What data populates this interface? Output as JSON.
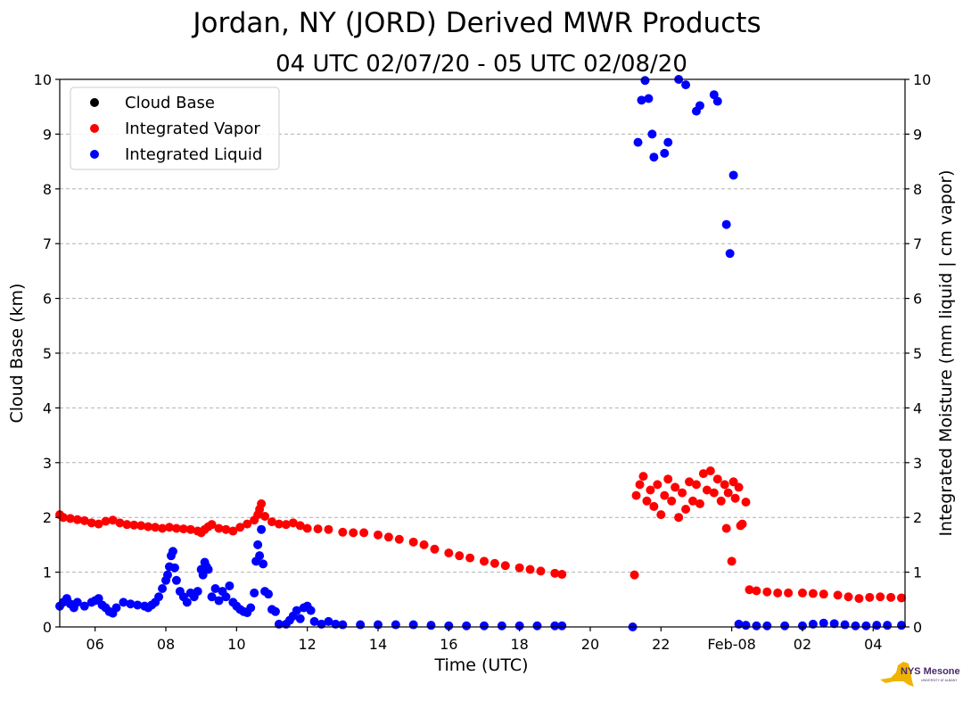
{
  "chart_data": {
    "type": "scatter",
    "title": "Jordan, NY (JORD) Derived MWR Products",
    "subtitle": "04 UTC 02/07/20 - 05 UTC 02/08/20",
    "xlabel": "Time (UTC)",
    "ylabel_left": "Cloud Base (km)",
    "ylabel_right": "Integrated Moisture (mm liquid | cm vapor)",
    "xlim_hours": [
      5.0,
      28.9
    ],
    "ylim": [
      0,
      10
    ],
    "grid": true,
    "x_ticks": [
      {
        "hour": 6,
        "label": "06"
      },
      {
        "hour": 8,
        "label": "08"
      },
      {
        "hour": 10,
        "label": "10"
      },
      {
        "hour": 12,
        "label": "12"
      },
      {
        "hour": 14,
        "label": "14"
      },
      {
        "hour": 16,
        "label": "16"
      },
      {
        "hour": 18,
        "label": "18"
      },
      {
        "hour": 20,
        "label": "20"
      },
      {
        "hour": 22,
        "label": "22"
      },
      {
        "hour": 24,
        "label": "Feb-08"
      },
      {
        "hour": 26,
        "label": "02"
      },
      {
        "hour": 28,
        "label": "04"
      }
    ],
    "y_ticks": [
      0,
      1,
      2,
      3,
      4,
      5,
      6,
      7,
      8,
      9,
      10
    ],
    "legend_position": "top-left",
    "series": [
      {
        "name": "Cloud Base",
        "color": "#000000",
        "axis": "left",
        "points": []
      },
      {
        "name": "Integrated Vapor",
        "color": "#ff0000",
        "axis": "right",
        "points": [
          [
            5.0,
            2.05
          ],
          [
            5.1,
            2.0
          ],
          [
            5.3,
            1.98
          ],
          [
            5.5,
            1.96
          ],
          [
            5.7,
            1.94
          ],
          [
            5.9,
            1.9
          ],
          [
            6.1,
            1.88
          ],
          [
            6.3,
            1.93
          ],
          [
            6.5,
            1.95
          ],
          [
            6.7,
            1.9
          ],
          [
            6.9,
            1.87
          ],
          [
            7.1,
            1.86
          ],
          [
            7.3,
            1.85
          ],
          [
            7.5,
            1.83
          ],
          [
            7.7,
            1.82
          ],
          [
            7.9,
            1.8
          ],
          [
            8.1,
            1.82
          ],
          [
            8.3,
            1.8
          ],
          [
            8.5,
            1.79
          ],
          [
            8.7,
            1.78
          ],
          [
            8.9,
            1.75
          ],
          [
            9.0,
            1.72
          ],
          [
            9.1,
            1.78
          ],
          [
            9.2,
            1.83
          ],
          [
            9.3,
            1.87
          ],
          [
            9.5,
            1.8
          ],
          [
            9.7,
            1.78
          ],
          [
            9.9,
            1.75
          ],
          [
            10.1,
            1.82
          ],
          [
            10.3,
            1.88
          ],
          [
            10.5,
            1.95
          ],
          [
            10.6,
            2.05
          ],
          [
            10.65,
            2.15
          ],
          [
            10.7,
            2.25
          ],
          [
            10.8,
            2.02
          ],
          [
            11.0,
            1.92
          ],
          [
            11.2,
            1.88
          ],
          [
            11.4,
            1.87
          ],
          [
            11.6,
            1.9
          ],
          [
            11.8,
            1.85
          ],
          [
            12.0,
            1.8
          ],
          [
            12.3,
            1.79
          ],
          [
            12.6,
            1.78
          ],
          [
            13.0,
            1.73
          ],
          [
            13.3,
            1.72
          ],
          [
            13.6,
            1.72
          ],
          [
            14.0,
            1.68
          ],
          [
            14.3,
            1.64
          ],
          [
            14.6,
            1.6
          ],
          [
            15.0,
            1.55
          ],
          [
            15.3,
            1.5
          ],
          [
            15.6,
            1.42
          ],
          [
            16.0,
            1.35
          ],
          [
            16.3,
            1.3
          ],
          [
            16.6,
            1.26
          ],
          [
            17.0,
            1.2
          ],
          [
            17.3,
            1.16
          ],
          [
            17.6,
            1.12
          ],
          [
            18.0,
            1.08
          ],
          [
            18.3,
            1.05
          ],
          [
            18.6,
            1.02
          ],
          [
            19.0,
            0.98
          ],
          [
            19.2,
            0.96
          ],
          [
            21.25,
            0.95
          ],
          [
            21.3,
            2.4
          ],
          [
            21.4,
            2.6
          ],
          [
            21.5,
            2.75
          ],
          [
            21.6,
            2.3
          ],
          [
            21.7,
            2.5
          ],
          [
            21.8,
            2.2
          ],
          [
            21.9,
            2.6
          ],
          [
            22.0,
            2.05
          ],
          [
            22.1,
            2.4
          ],
          [
            22.2,
            2.7
          ],
          [
            22.3,
            2.3
          ],
          [
            22.4,
            2.55
          ],
          [
            22.5,
            2.0
          ],
          [
            22.6,
            2.45
          ],
          [
            22.7,
            2.15
          ],
          [
            22.8,
            2.65
          ],
          [
            22.9,
            2.3
          ],
          [
            23.0,
            2.6
          ],
          [
            23.1,
            2.25
          ],
          [
            23.2,
            2.8
          ],
          [
            23.3,
            2.5
          ],
          [
            23.4,
            2.85
          ],
          [
            23.5,
            2.45
          ],
          [
            23.6,
            2.7
          ],
          [
            23.7,
            2.3
          ],
          [
            23.8,
            2.6
          ],
          [
            23.85,
            1.8
          ],
          [
            23.9,
            2.45
          ],
          [
            24.0,
            1.2
          ],
          [
            24.05,
            2.65
          ],
          [
            24.1,
            2.35
          ],
          [
            24.2,
            2.55
          ],
          [
            24.25,
            1.85
          ],
          [
            24.3,
            1.88
          ],
          [
            24.4,
            2.28
          ],
          [
            24.5,
            0.68
          ],
          [
            24.7,
            0.66
          ],
          [
            25.0,
            0.64
          ],
          [
            25.3,
            0.62
          ],
          [
            25.6,
            0.62
          ],
          [
            26.0,
            0.62
          ],
          [
            26.3,
            0.61
          ],
          [
            26.6,
            0.6
          ],
          [
            27.0,
            0.58
          ],
          [
            27.3,
            0.55
          ],
          [
            27.6,
            0.52
          ],
          [
            27.9,
            0.54
          ],
          [
            28.2,
            0.55
          ],
          [
            28.5,
            0.54
          ],
          [
            28.8,
            0.53
          ]
        ]
      },
      {
        "name": "Integrated Liquid",
        "color": "#0000ff",
        "axis": "right",
        "points": [
          [
            5.0,
            0.38
          ],
          [
            5.1,
            0.45
          ],
          [
            5.2,
            0.52
          ],
          [
            5.3,
            0.42
          ],
          [
            5.4,
            0.35
          ],
          [
            5.5,
            0.45
          ],
          [
            5.7,
            0.38
          ],
          [
            5.9,
            0.45
          ],
          [
            6.0,
            0.48
          ],
          [
            6.1,
            0.52
          ],
          [
            6.2,
            0.4
          ],
          [
            6.3,
            0.35
          ],
          [
            6.4,
            0.28
          ],
          [
            6.5,
            0.25
          ],
          [
            6.6,
            0.35
          ],
          [
            6.8,
            0.45
          ],
          [
            7.0,
            0.42
          ],
          [
            7.2,
            0.4
          ],
          [
            7.4,
            0.38
          ],
          [
            7.5,
            0.35
          ],
          [
            7.6,
            0.4
          ],
          [
            7.7,
            0.45
          ],
          [
            7.8,
            0.55
          ],
          [
            7.9,
            0.7
          ],
          [
            8.0,
            0.85
          ],
          [
            8.05,
            0.95
          ],
          [
            8.1,
            1.1
          ],
          [
            8.15,
            1.3
          ],
          [
            8.2,
            1.38
          ],
          [
            8.25,
            1.08
          ],
          [
            8.3,
            0.85
          ],
          [
            8.4,
            0.65
          ],
          [
            8.5,
            0.55
          ],
          [
            8.6,
            0.45
          ],
          [
            8.7,
            0.62
          ],
          [
            8.8,
            0.55
          ],
          [
            8.9,
            0.65
          ],
          [
            9.0,
            1.05
          ],
          [
            9.05,
            0.95
          ],
          [
            9.1,
            1.18
          ],
          [
            9.15,
            1.1
          ],
          [
            9.2,
            1.05
          ],
          [
            9.3,
            0.55
          ],
          [
            9.4,
            0.7
          ],
          [
            9.5,
            0.48
          ],
          [
            9.6,
            0.65
          ],
          [
            9.7,
            0.55
          ],
          [
            9.8,
            0.75
          ],
          [
            9.9,
            0.45
          ],
          [
            10.0,
            0.38
          ],
          [
            10.1,
            0.32
          ],
          [
            10.2,
            0.28
          ],
          [
            10.3,
            0.26
          ],
          [
            10.4,
            0.35
          ],
          [
            10.5,
            0.62
          ],
          [
            10.55,
            1.2
          ],
          [
            10.6,
            1.5
          ],
          [
            10.65,
            1.3
          ],
          [
            10.7,
            1.78
          ],
          [
            10.75,
            1.15
          ],
          [
            10.8,
            0.65
          ],
          [
            10.9,
            0.6
          ],
          [
            11.0,
            0.32
          ],
          [
            11.1,
            0.28
          ],
          [
            11.2,
            0.05
          ],
          [
            11.4,
            0.05
          ],
          [
            11.5,
            0.12
          ],
          [
            11.6,
            0.2
          ],
          [
            11.7,
            0.3
          ],
          [
            11.8,
            0.15
          ],
          [
            11.9,
            0.35
          ],
          [
            12.0,
            0.38
          ],
          [
            12.1,
            0.3
          ],
          [
            12.2,
            0.1
          ],
          [
            12.4,
            0.05
          ],
          [
            12.6,
            0.1
          ],
          [
            12.8,
            0.05
          ],
          [
            13.0,
            0.04
          ],
          [
            13.5,
            0.04
          ],
          [
            14.0,
            0.04
          ],
          [
            14.5,
            0.04
          ],
          [
            15.0,
            0.04
          ],
          [
            15.5,
            0.03
          ],
          [
            16.0,
            0.02
          ],
          [
            16.5,
            0.02
          ],
          [
            17.0,
            0.02
          ],
          [
            17.5,
            0.02
          ],
          [
            18.0,
            0.02
          ],
          [
            18.5,
            0.02
          ],
          [
            19.0,
            0.02
          ],
          [
            19.2,
            0.02
          ],
          [
            21.2,
            0.0
          ],
          [
            21.35,
            8.85
          ],
          [
            21.45,
            9.62
          ],
          [
            21.55,
            9.98
          ],
          [
            21.65,
            9.65
          ],
          [
            21.75,
            9.0
          ],
          [
            21.8,
            8.58
          ],
          [
            22.1,
            8.65
          ],
          [
            22.2,
            8.85
          ],
          [
            22.5,
            10.0
          ],
          [
            22.7,
            9.9
          ],
          [
            23.0,
            9.42
          ],
          [
            23.1,
            9.52
          ],
          [
            23.5,
            9.72
          ],
          [
            23.6,
            9.6
          ],
          [
            23.85,
            7.35
          ],
          [
            23.95,
            6.82
          ],
          [
            24.05,
            8.25
          ],
          [
            24.2,
            0.05
          ],
          [
            24.4,
            0.03
          ],
          [
            24.7,
            0.02
          ],
          [
            25.0,
            0.02
          ],
          [
            25.5,
            0.02
          ],
          [
            26.0,
            0.02
          ],
          [
            26.3,
            0.05
          ],
          [
            26.6,
            0.07
          ],
          [
            26.9,
            0.06
          ],
          [
            27.2,
            0.04
          ],
          [
            27.5,
            0.02
          ],
          [
            27.8,
            0.02
          ],
          [
            28.1,
            0.03
          ],
          [
            28.4,
            0.03
          ],
          [
            28.8,
            0.03
          ]
        ]
      }
    ]
  },
  "logo": {
    "text": "NYS Mesonet",
    "subtext": "UNIVERSITY AT ALBANY"
  }
}
